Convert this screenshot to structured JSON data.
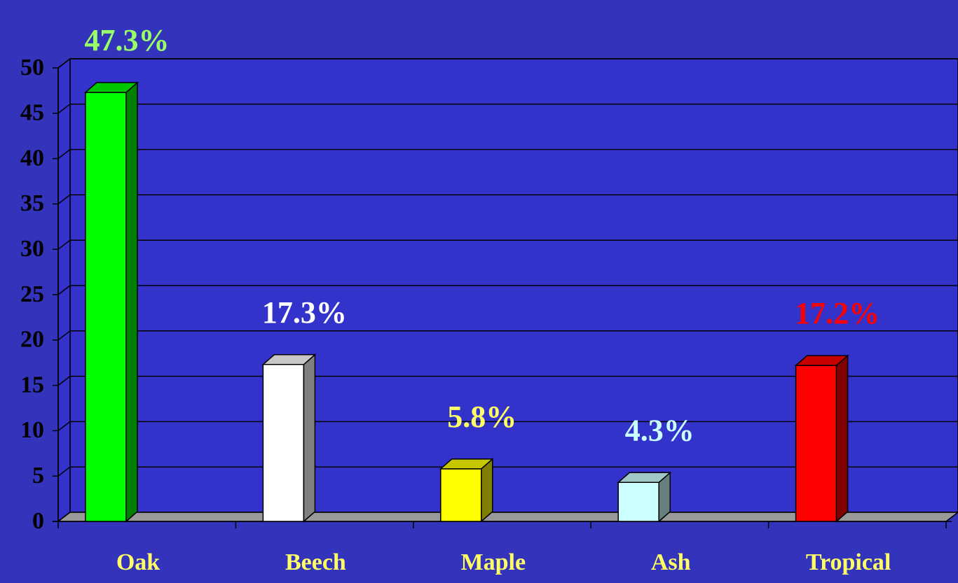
{
  "chart_data": {
    "type": "bar3d",
    "categories": [
      "Oak",
      "Beech",
      "Maple",
      "Ash",
      "Tropical"
    ],
    "values": [
      47.3,
      17.3,
      5.8,
      4.3,
      17.2
    ],
    "value_labels": [
      "47.3%",
      "17.3%",
      "5.8%",
      "4.3%",
      "17.2%"
    ],
    "colors": [
      "#00ff00",
      "#ffffff",
      "#ffff00",
      "#ccffff",
      "#ff0000"
    ],
    "label_colors": [
      "#99ff66",
      "#ffffff",
      "#ffff66",
      "#ccffff",
      "#ff0000"
    ],
    "ylim": [
      0,
      50
    ],
    "yticks": [
      0,
      5,
      10,
      15,
      20,
      25,
      30,
      35,
      40,
      45,
      50
    ],
    "grid": true
  }
}
